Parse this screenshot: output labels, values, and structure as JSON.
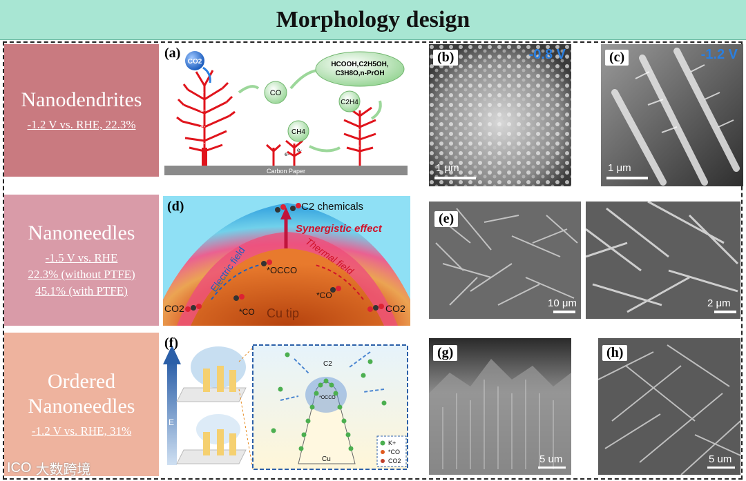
{
  "header": {
    "title": "Morphology design"
  },
  "rows": [
    {
      "title": "Nanodendrites",
      "sub": [
        "-1.2 V vs. RHE, 22.3%"
      ]
    },
    {
      "title": "Nanoneedles",
      "sub": [
        "-1.5 V vs. RHE",
        "22.3% (without PTFE)",
        "45.1% (with PTFE)"
      ]
    },
    {
      "title_lines": [
        "Ordered",
        "Nanoneedles"
      ],
      "sub": [
        "-1.2 V vs. RHE, 31%"
      ]
    }
  ],
  "panel_a": {
    "label": "(a)",
    "co2": "CO2",
    "products": [
      "HCOOH,C2H5OH,",
      "C3H8O,n-PrOH"
    ],
    "co": "CO",
    "c2h4": "C2H4",
    "ch4": "CH4",
    "substrate": "Carbon Paper",
    "electron": "e-"
  },
  "panel_b": {
    "label": "(b)",
    "voltage": "-0.8 V",
    "scale": "1 μm"
  },
  "panel_c": {
    "label": "(c)",
    "voltage": "-1.2 V",
    "scale": "1 μm"
  },
  "panel_d": {
    "label": "(d)",
    "c2": "C2 chemicals",
    "synergy": "Synergistic effect",
    "electric": "Electric field",
    "thermal": "Thermal field",
    "occo": "*OCCO",
    "co_left": "*CO",
    "co_right": "*CO",
    "co2_left": "CO2",
    "co2_right": "CO2",
    "tip": "Cu tip"
  },
  "panel_e": {
    "label": "(e)",
    "scale_left": "10 μm",
    "scale_right": "2 μm"
  },
  "panel_f": {
    "label": "(f)",
    "field": "E",
    "c2": "C2",
    "occo": "*OCCO",
    "cu": "Cu",
    "legend": [
      "K+",
      "*CO",
      "CO2"
    ]
  },
  "panel_g": {
    "label": "(g)",
    "scale": "5 um"
  },
  "panel_h": {
    "label": "(h)",
    "scale": "5 um"
  },
  "watermark": {
    "text": "大数跨境",
    "logo": "ICO"
  },
  "colors": {
    "header": "#a8e6d3",
    "row1": "#c97a80",
    "row2": "#d99ba8",
    "row3": "#eeb39e",
    "voltage": "#2a7fe0"
  }
}
